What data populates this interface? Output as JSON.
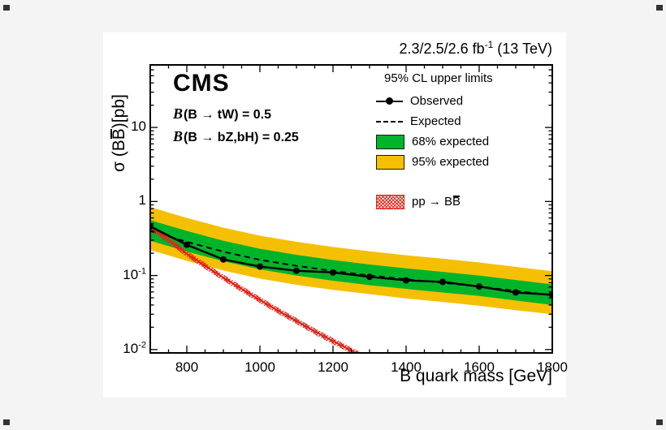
{
  "page": {
    "background": "#f4f4f4",
    "canvas_background": "#ffffff"
  },
  "header": {
    "lumi_prefix": "2.3/2.5/2.6 fb",
    "lumi_exp": "-1",
    "lumi_suffix": " (13 TeV)"
  },
  "annotations": {
    "cms": "CMS",
    "br1_b": "B",
    "br1_rest": "(B → tW) = 0.5",
    "br2_b": "B",
    "br2_rest": "(B → bZ,bH) = 0.25"
  },
  "legend": {
    "header": "95% CL upper limits",
    "items": [
      {
        "swatch": "marker-line",
        "label": "Observed"
      },
      {
        "swatch": "dashed",
        "label": "Expected"
      },
      {
        "swatch": "green-box",
        "label": "68% expected"
      },
      {
        "swatch": "yellow-box",
        "label": "95% expected"
      }
    ],
    "theory_item": {
      "swatch": "red-hatch",
      "label_prefix": "pp → B",
      "label_bbar": "B"
    }
  },
  "axes": {
    "x_label": "B quark mass [GeV]",
    "y_label_prefix": "σ (B",
    "y_label_bbar": "B",
    "y_label_suffix": ")[pb]"
  },
  "colors": {
    "band68": "#00b42a",
    "band95": "#f5c004",
    "theory": "#e42318",
    "observed": "#000000",
    "expected": "#000000",
    "frame": "#000000"
  },
  "chart_data": {
    "type": "line",
    "title": "95% CL upper limits on σ(BB̄)",
    "xlabel": "B quark mass [GeV]",
    "ylabel": "σ (BB̄) [pb]",
    "y_scale": "log",
    "xlim": [
      700,
      1800
    ],
    "ylim": [
      0.009,
      70
    ],
    "grid": false,
    "legend_position": "top-right",
    "x_ticks": [
      800,
      1000,
      1200,
      1400,
      1600,
      1800
    ],
    "y_ticks": [
      {
        "value": 10,
        "base": "10",
        "exp": ""
      },
      {
        "value": 1,
        "base": "1",
        "exp": ""
      },
      {
        "value": 0.1,
        "base": "10",
        "exp": "-1"
      },
      {
        "value": 0.01,
        "base": "10",
        "exp": "-2"
      }
    ],
    "x": [
      700,
      800,
      900,
      1000,
      1100,
      1200,
      1300,
      1400,
      1500,
      1600,
      1700,
      1800
    ],
    "observed": [
      0.46,
      0.26,
      0.165,
      0.132,
      0.116,
      0.11,
      0.096,
      0.086,
      0.082,
      0.071,
      0.059,
      0.055
    ],
    "expected": [
      0.4,
      0.285,
      0.21,
      0.163,
      0.135,
      0.115,
      0.1,
      0.089,
      0.08,
      0.071,
      0.062,
      0.054
    ],
    "band68_up": [
      0.56,
      0.4,
      0.295,
      0.23,
      0.19,
      0.162,
      0.141,
      0.125,
      0.112,
      0.1,
      0.087,
      0.076
    ],
    "band68_down": [
      0.296,
      0.211,
      0.156,
      0.121,
      0.1,
      0.085,
      0.074,
      0.066,
      0.059,
      0.053,
      0.046,
      0.04
    ],
    "band95_up": [
      0.84,
      0.6,
      0.443,
      0.345,
      0.286,
      0.243,
      0.212,
      0.188,
      0.169,
      0.15,
      0.131,
      0.114
    ],
    "band95_down": [
      0.222,
      0.158,
      0.117,
      0.091,
      0.075,
      0.064,
      0.056,
      0.049,
      0.044,
      0.039,
      0.034,
      0.03
    ],
    "theory": {
      "name": "pp → BB̄ theory cross section",
      "x": [
        700,
        750,
        800,
        850,
        900,
        950,
        1000,
        1050,
        1100,
        1150,
        1200,
        1250,
        1300
      ],
      "values": [
        0.455,
        0.302,
        0.196,
        0.135,
        0.0935,
        0.066,
        0.0468,
        0.0334,
        0.0243,
        0.0176,
        0.013,
        0.0097,
        0.0072
      ]
    }
  }
}
